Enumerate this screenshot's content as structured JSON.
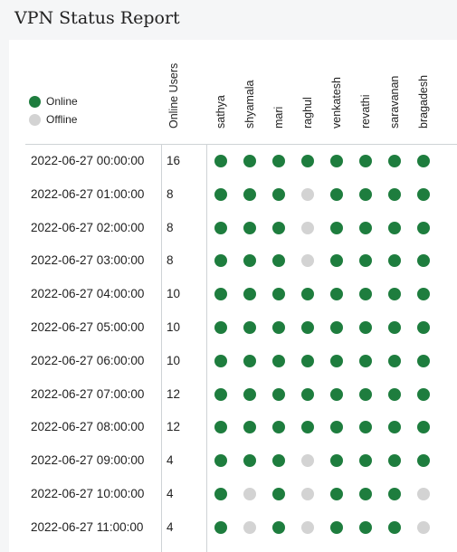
{
  "title": "VPN Status Report",
  "colors": {
    "online": "#1e7d3e",
    "offline": "#d3d3d3"
  },
  "legend": [
    {
      "label": "Online",
      "status": "online"
    },
    {
      "label": "Offline",
      "status": "offline"
    }
  ],
  "columns": {
    "count_header": "Online Users",
    "users": [
      "sathya",
      "shyamala",
      "mari",
      "raghul",
      "venkatesh",
      "revathi",
      "saravanan",
      "bragadesh"
    ]
  },
  "rows": [
    {
      "time": "2022-06-27 00:00:00",
      "count": "16",
      "statuses": [
        1,
        1,
        1,
        1,
        1,
        1,
        1,
        1
      ]
    },
    {
      "time": "2022-06-27 01:00:00",
      "count": "8",
      "statuses": [
        1,
        1,
        1,
        0,
        1,
        1,
        1,
        1
      ]
    },
    {
      "time": "2022-06-27 02:00:00",
      "count": "8",
      "statuses": [
        1,
        1,
        1,
        0,
        1,
        1,
        1,
        1
      ]
    },
    {
      "time": "2022-06-27 03:00:00",
      "count": "8",
      "statuses": [
        1,
        1,
        1,
        0,
        1,
        1,
        1,
        1
      ]
    },
    {
      "time": "2022-06-27 04:00:00",
      "count": "10",
      "statuses": [
        1,
        1,
        1,
        1,
        1,
        1,
        1,
        1
      ]
    },
    {
      "time": "2022-06-27 05:00:00",
      "count": "10",
      "statuses": [
        1,
        1,
        1,
        1,
        1,
        1,
        1,
        1
      ]
    },
    {
      "time": "2022-06-27 06:00:00",
      "count": "10",
      "statuses": [
        1,
        1,
        1,
        1,
        1,
        1,
        1,
        1
      ]
    },
    {
      "time": "2022-06-27 07:00:00",
      "count": "12",
      "statuses": [
        1,
        1,
        1,
        1,
        1,
        1,
        1,
        1
      ]
    },
    {
      "time": "2022-06-27 08:00:00",
      "count": "12",
      "statuses": [
        1,
        1,
        1,
        1,
        1,
        1,
        1,
        1
      ]
    },
    {
      "time": "2022-06-27 09:00:00",
      "count": "4",
      "statuses": [
        1,
        1,
        1,
        0,
        1,
        1,
        1,
        1
      ]
    },
    {
      "time": "2022-06-27 10:00:00",
      "count": "4",
      "statuses": [
        1,
        0,
        1,
        0,
        1,
        1,
        1,
        0
      ]
    },
    {
      "time": "2022-06-27 11:00:00",
      "count": "4",
      "statuses": [
        1,
        0,
        1,
        0,
        1,
        1,
        1,
        0
      ]
    }
  ]
}
